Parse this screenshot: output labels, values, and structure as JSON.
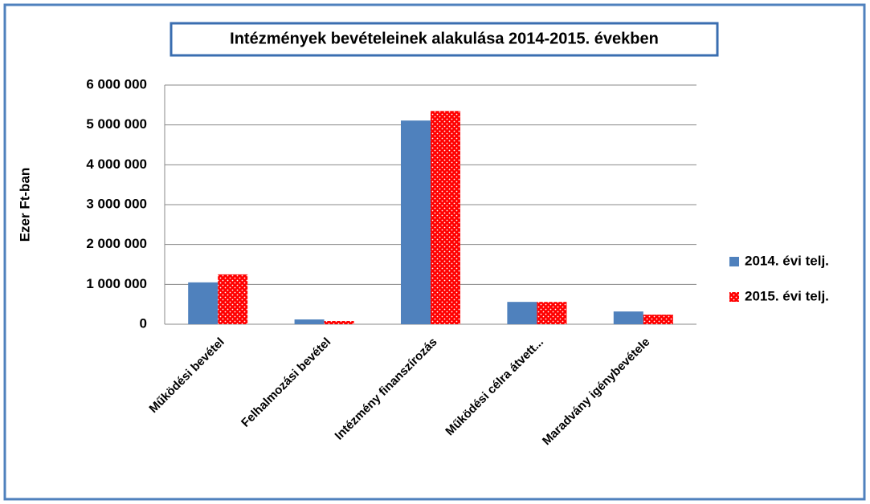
{
  "chart_data": {
    "type": "bar",
    "title": "Intézmények bevételeinek alakulása 2014-2015. években",
    "y_label": "Ezer  Ft-ban",
    "categories": [
      "Működési bevétel",
      "Felhalmozási bevétel",
      "Intézmény finanszírozás",
      "Működési célra átvett...",
      "Maradvány igénybevétele"
    ],
    "series": [
      {
        "name": "2014. évi telj.",
        "color": "#4f81bd",
        "values": [
          1050000,
          120000,
          5110000,
          560000,
          320000
        ]
      },
      {
        "name": "2015. évi telj.",
        "color": "#ff0000",
        "pattern": "dots",
        "values": [
          1250000,
          80000,
          5350000,
          560000,
          240000
        ]
      }
    ],
    "ylim": [
      0,
      6000000
    ],
    "yticks": [
      0,
      {
        "value": 1000000,
        "label": "1 000 000"
      },
      {
        "value": 2000000,
        "label": "2 000 000"
      },
      {
        "value": 3000000,
        "label": "3 000 000"
      },
      {
        "value": 4000000,
        "label": "4 000 000"
      },
      {
        "value": 5000000,
        "label": "5 000 000"
      },
      {
        "value": 6000000,
        "label": "6 000 000"
      }
    ],
    "grid": true,
    "legend": "right"
  }
}
